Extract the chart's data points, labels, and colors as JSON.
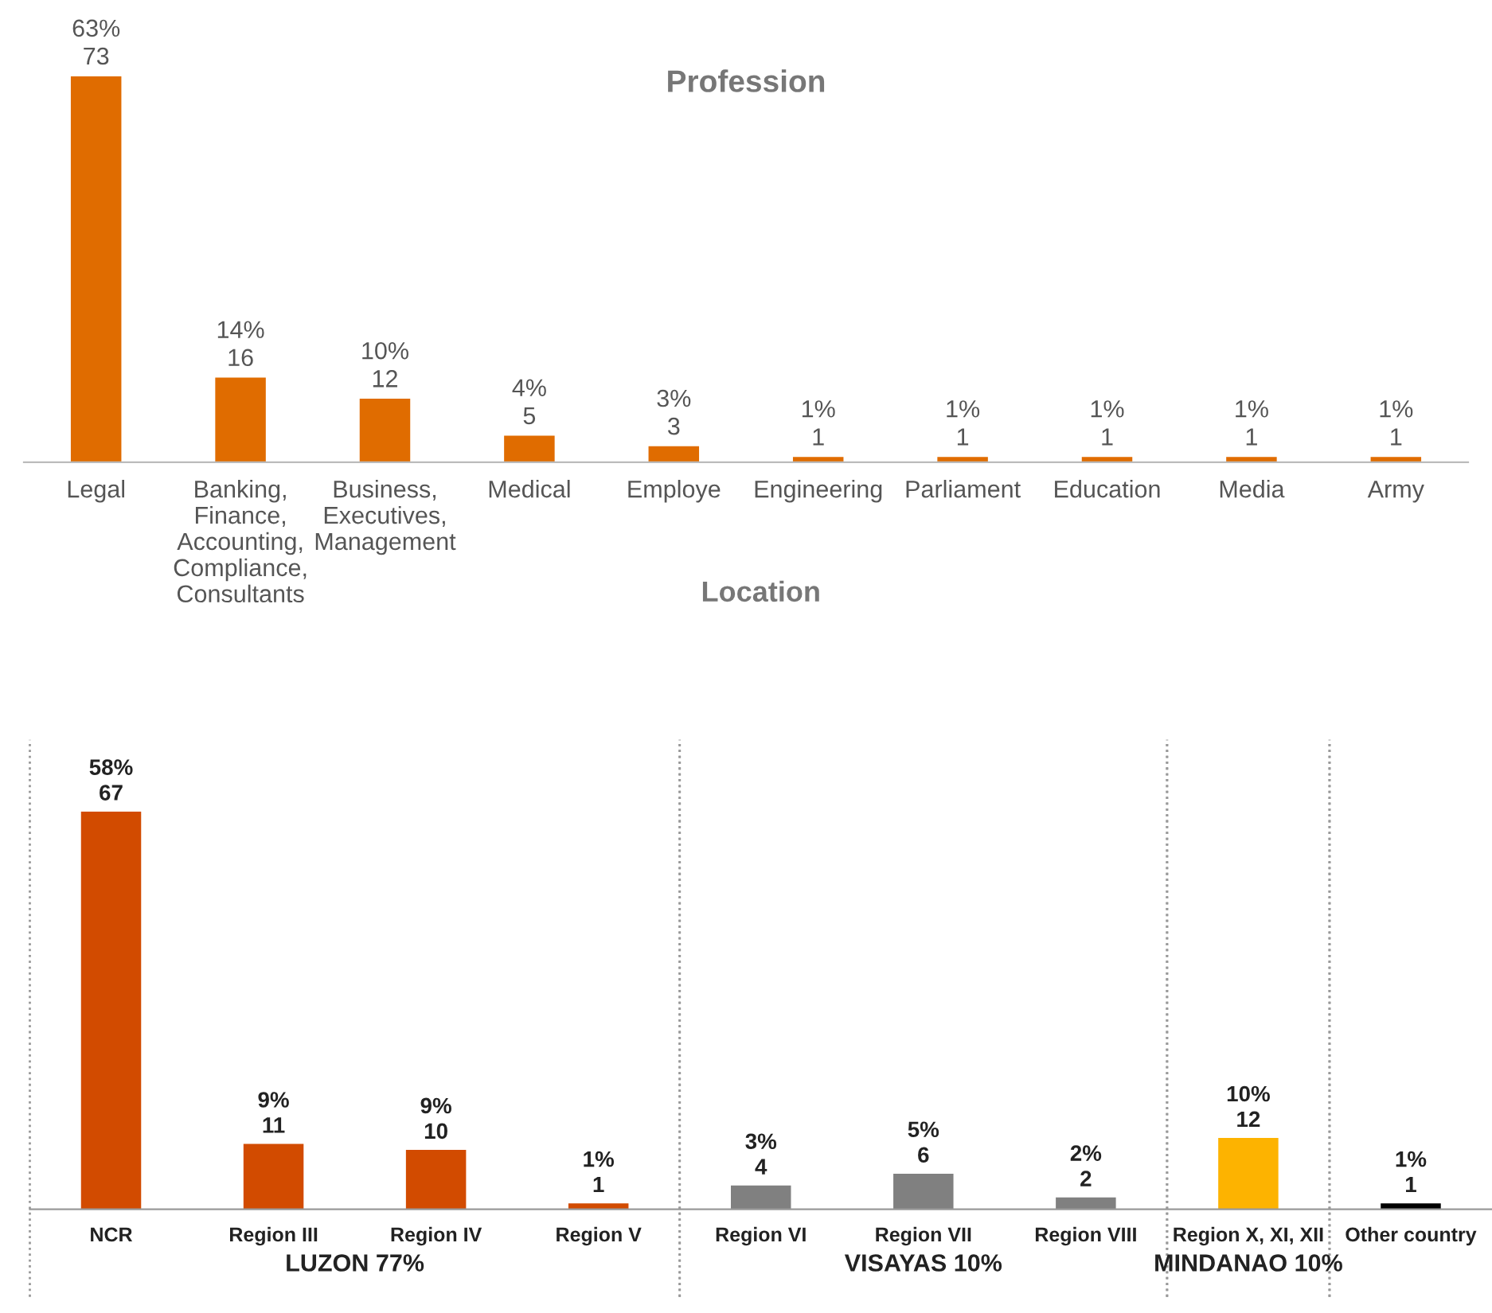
{
  "chart_data": [
    {
      "type": "bar",
      "title": "Profession",
      "categories": [
        "Legal",
        "Banking,\nFinance,\nAccounting,\nCompliance,\nConsultants",
        "Business,\nExecutives,\nManagement",
        "Medical",
        "Employe",
        "Engineering",
        "Parliament",
        "Education",
        "Media",
        "Army"
      ],
      "values": [
        73,
        16,
        12,
        5,
        3,
        1,
        1,
        1,
        1,
        1
      ],
      "color": "#e06c00",
      "value_labels": [
        "63%\n73",
        "14%\n16",
        "10%\n12",
        "4%\n5",
        "3%\n3",
        "1%\n1",
        "1%\n1",
        "1%\n1",
        "1%\n1",
        "1%\n1"
      ],
      "grid": false,
      "legend": false
    },
    {
      "type": "bar",
      "title": "Location",
      "categories": [
        "NCR",
        "Region III",
        "Region IV",
        "Region V",
        "Region VI",
        "Region VII",
        "Region VIII",
        "Region X, XI, XII",
        "Other country"
      ],
      "values": [
        67,
        11,
        10,
        1,
        4,
        6,
        2,
        12,
        1
      ],
      "colors": [
        "#d24b00",
        "#d24b00",
        "#d24b00",
        "#d24b00",
        "#808080",
        "#808080",
        "#808080",
        "#fdb300",
        "#000000"
      ],
      "value_labels": [
        "58%\n67",
        "9%\n11",
        "9%\n10",
        "1%\n1",
        "3%\n4",
        "5%\n6",
        "2%\n2",
        "10%\n12",
        "1%\n1"
      ],
      "annotations": [
        "LUZON 77%",
        "VISAYAS 10%",
        "MINDANAO 10%"
      ],
      "grid": false,
      "legend": false
    }
  ]
}
